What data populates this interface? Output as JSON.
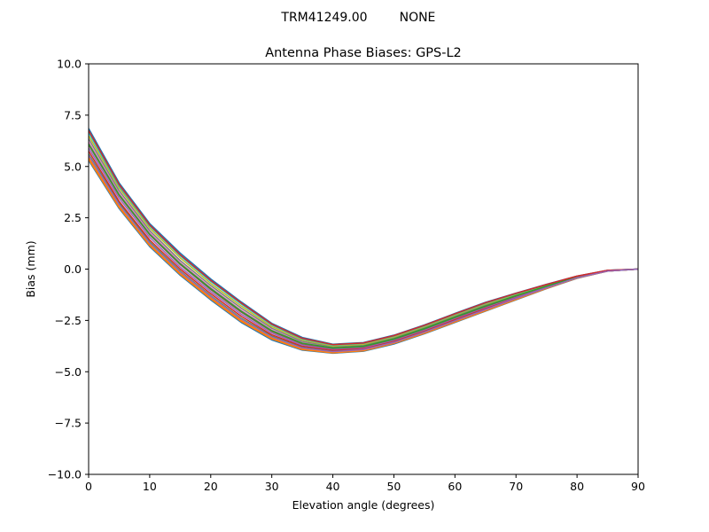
{
  "figure": {
    "suptitle_left": "TRM41249.00",
    "suptitle_right": "NONE"
  },
  "chart_data": {
    "type": "line",
    "title": "Antenna Phase Biases: GPS-L2",
    "xlabel": "Elevation angle (degrees)",
    "ylabel": "Bias (mm)",
    "xlim": [
      0,
      90
    ],
    "ylim": [
      -10,
      10
    ],
    "x_ticks": [
      0,
      10,
      20,
      30,
      40,
      50,
      60,
      70,
      80,
      90
    ],
    "x_tick_labels": [
      "0",
      "10",
      "20",
      "30",
      "40",
      "50",
      "60",
      "70",
      "80",
      "90"
    ],
    "y_ticks": [
      10,
      7.5,
      5,
      2.5,
      0,
      -2.5,
      -5,
      -7.5,
      -10
    ],
    "y_tick_labels": [
      "10.0",
      "7.5",
      "5.0",
      "2.5",
      "0.0",
      "−2.5",
      "−5.0",
      "−7.5",
      "−10.0"
    ],
    "grid": false,
    "legend": "none",
    "palette": [
      "#1f77b4",
      "#ff7f0e",
      "#2ca02c",
      "#d62728",
      "#9467bd",
      "#8c564b",
      "#e377c2",
      "#7f7f7f",
      "#bcbd22",
      "#17becf"
    ],
    "x": [
      0,
      5,
      10,
      15,
      20,
      25,
      30,
      35,
      40,
      45,
      50,
      55,
      60,
      65,
      70,
      75,
      80,
      85,
      90
    ],
    "series": [
      {
        "values": [
          5.3,
          2.95,
          1.1,
          -0.3,
          -1.5,
          -2.6,
          -3.45,
          -3.95,
          -4.1,
          -4.0,
          -3.65,
          -3.15,
          -2.6,
          -2.05,
          -1.5,
          -0.95,
          -0.45,
          -0.1,
          0.0
        ]
      },
      {
        "values": [
          5.45,
          3.05,
          1.2,
          -0.2,
          -1.4,
          -2.5,
          -3.35,
          -3.88,
          -4.05,
          -3.95,
          -3.6,
          -3.1,
          -2.55,
          -2.0,
          -1.45,
          -0.92,
          -0.43,
          -0.1,
          0.0
        ]
      },
      {
        "values": [
          5.6,
          3.2,
          1.32,
          -0.1,
          -1.3,
          -2.4,
          -3.27,
          -3.82,
          -4.0,
          -3.9,
          -3.55,
          -3.05,
          -2.5,
          -1.95,
          -1.42,
          -0.9,
          -0.42,
          -0.1,
          0.0
        ]
      },
      {
        "values": [
          5.75,
          3.3,
          1.42,
          0.0,
          -1.2,
          -2.3,
          -3.2,
          -3.76,
          -3.95,
          -3.86,
          -3.5,
          -3.0,
          -2.45,
          -1.9,
          -1.38,
          -0.88,
          -0.41,
          -0.09,
          0.0
        ]
      },
      {
        "values": [
          5.9,
          3.45,
          1.55,
          0.1,
          -1.1,
          -2.2,
          -3.12,
          -3.7,
          -3.9,
          -3.82,
          -3.46,
          -2.96,
          -2.4,
          -1.86,
          -1.35,
          -0.86,
          -0.4,
          -0.09,
          0.0
        ]
      },
      {
        "values": [
          6.05,
          3.58,
          1.67,
          0.22,
          -1.0,
          -2.1,
          -3.04,
          -3.64,
          -3.86,
          -3.78,
          -3.42,
          -2.92,
          -2.36,
          -1.82,
          -1.32,
          -0.84,
          -0.39,
          -0.08,
          0.0
        ]
      },
      {
        "values": [
          6.2,
          3.7,
          1.78,
          0.32,
          -0.9,
          -2.0,
          -2.96,
          -3.58,
          -3.82,
          -3.74,
          -3.38,
          -2.88,
          -2.32,
          -1.78,
          -1.29,
          -0.82,
          -0.38,
          -0.08,
          0.0
        ]
      },
      {
        "values": [
          6.35,
          3.82,
          1.88,
          0.42,
          -0.8,
          -1.9,
          -2.88,
          -3.52,
          -3.78,
          -3.7,
          -3.34,
          -2.84,
          -2.28,
          -1.74,
          -1.26,
          -0.8,
          -0.37,
          -0.07,
          0.0
        ]
      },
      {
        "values": [
          6.5,
          3.95,
          2.0,
          0.55,
          -0.7,
          -1.8,
          -2.8,
          -3.45,
          -3.74,
          -3.66,
          -3.3,
          -2.8,
          -2.24,
          -1.7,
          -1.23,
          -0.78,
          -0.36,
          -0.07,
          0.0
        ]
      },
      {
        "values": [
          6.65,
          4.05,
          2.1,
          0.65,
          -0.6,
          -1.7,
          -2.72,
          -3.4,
          -3.7,
          -3.62,
          -3.26,
          -2.76,
          -2.2,
          -1.66,
          -1.2,
          -0.76,
          -0.35,
          -0.06,
          0.0
        ]
      },
      {
        "values": [
          6.85,
          4.2,
          2.22,
          0.78,
          -0.48,
          -1.6,
          -2.64,
          -3.33,
          -3.66,
          -3.58,
          -3.22,
          -2.72,
          -2.16,
          -1.62,
          -1.17,
          -0.74,
          -0.34,
          -0.06,
          0.0
        ]
      },
      {
        "values": [
          5.35,
          3.0,
          1.15,
          -0.25,
          -1.45,
          -2.55,
          -3.4,
          -3.92,
          -4.08,
          -3.98,
          -3.62,
          -3.13,
          -2.58,
          -2.03,
          -1.48,
          -0.94,
          -0.44,
          -0.1,
          0.0
        ]
      },
      {
        "values": [
          6.1,
          3.62,
          1.7,
          0.26,
          -0.95,
          -2.05,
          -3.0,
          -3.61,
          -3.84,
          -3.76,
          -3.4,
          -2.9,
          -2.34,
          -1.8,
          -1.3,
          -0.83,
          -0.38,
          -0.08,
          0.0
        ]
      },
      {
        "values": [
          6.75,
          4.12,
          2.15,
          0.7,
          -0.55,
          -1.65,
          -2.68,
          -3.37,
          -3.68,
          -3.6,
          -3.24,
          -2.74,
          -2.18,
          -1.64,
          -1.18,
          -0.75,
          -0.34,
          -0.06,
          0.0
        ]
      },
      {
        "values": [
          5.55,
          3.15,
          1.28,
          -0.13,
          -1.33,
          -2.43,
          -3.3,
          -3.84,
          -4.02,
          -3.92,
          -3.57,
          -3.07,
          -2.52,
          -1.97,
          -1.43,
          -0.91,
          -0.42,
          -0.1,
          0.0
        ]
      }
    ]
  }
}
